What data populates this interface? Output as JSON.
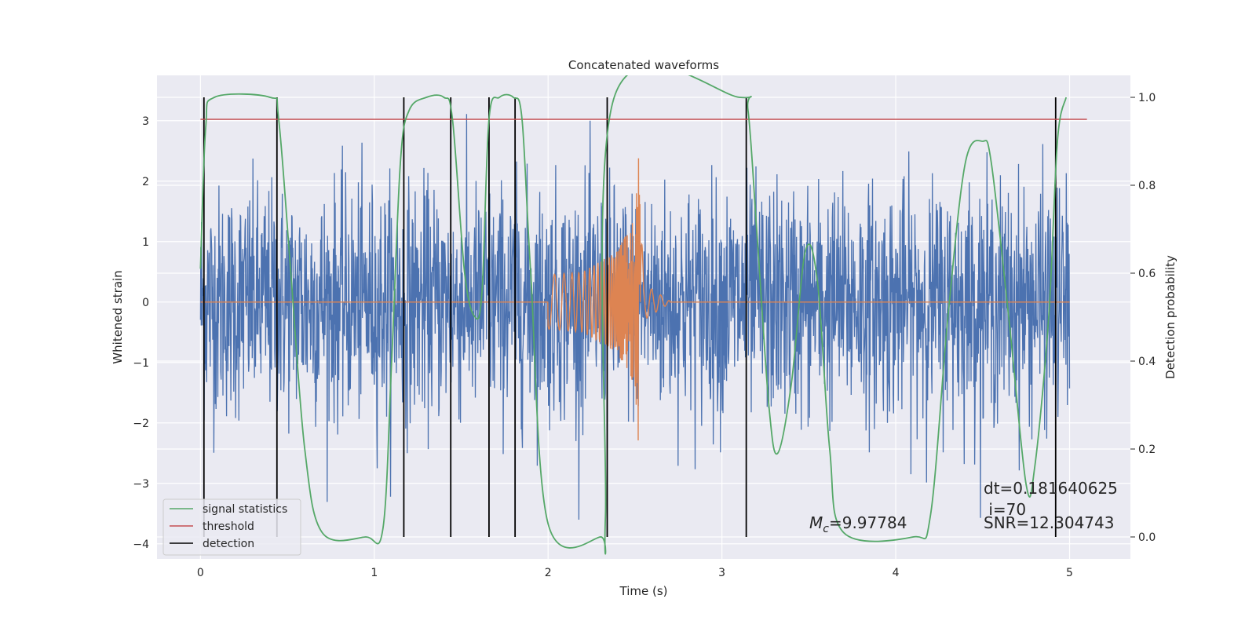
{
  "chart_data": {
    "type": "line",
    "title": "Concatenated waveforms",
    "xlabel": "Time (s)",
    "ylabel": "Whitened strain",
    "y2label": "Detection probability",
    "xlim": [
      -0.25,
      5.35
    ],
    "ylim": [
      -4.25,
      3.75
    ],
    "y2lim": [
      -0.05,
      1.05
    ],
    "x_ticks": [
      0,
      1,
      2,
      3,
      4,
      5
    ],
    "y_ticks": [
      -4,
      -3,
      -2,
      -1,
      0,
      1,
      2,
      3
    ],
    "y2_ticks": [
      0.0,
      0.2,
      0.4,
      0.6,
      0.8,
      1.0
    ],
    "x_tick_labels": [
      "0",
      "1",
      "2",
      "3",
      "4",
      "5"
    ],
    "y_tick_labels": [
      "−4",
      "−3",
      "−2",
      "−1",
      "0",
      "1",
      "2",
      "3"
    ],
    "y2_tick_labels": [
      "0.0",
      "0.2",
      "0.4",
      "0.6",
      "0.8",
      "1.0"
    ],
    "grid": true,
    "legend_position": "lower-left",
    "colors": {
      "background": "#eaeaf2",
      "grid": "#ffffff",
      "strain": "#4c72b0",
      "template": "#dd8452",
      "signal_statistics": "#55a868",
      "threshold": "#c44e52",
      "detection": "#000000"
    },
    "series": [
      {
        "name": "",
        "description_color": "strain",
        "x_range": [
          0,
          5
        ],
        "amplitude_envelope": [
          -3.6,
          3.5
        ],
        "typical_band": [
          -1.2,
          1.2
        ]
      },
      {
        "name": "",
        "description_color": "template",
        "x": [
          0,
          1.99,
          2.0,
          2.2,
          2.4,
          2.5,
          2.52,
          2.55,
          2.7,
          5.0
        ],
        "envelope": [
          0,
          0,
          0.45,
          0.5,
          0.85,
          1.4,
          2.45,
          0.3,
          0.02,
          0
        ]
      },
      {
        "name": "signal statistics",
        "axis": "right",
        "x": [
          0.0,
          0.03,
          0.08,
          0.4,
          0.45,
          0.52,
          0.6,
          0.7,
          0.95,
          1.05,
          1.1,
          1.15,
          1.2,
          1.3,
          1.4,
          1.45,
          1.52,
          1.58,
          1.62,
          1.66,
          1.72,
          1.8,
          1.85,
          1.9,
          2.0,
          2.3,
          2.33,
          2.38,
          3.1,
          3.15,
          3.2,
          3.27,
          3.32,
          3.4,
          3.48,
          3.55,
          3.62,
          3.7,
          4.1,
          4.2,
          4.3,
          4.4,
          4.5,
          4.55,
          4.65,
          4.75,
          4.8,
          4.88,
          4.93,
          4.98
        ],
        "values": [
          0.61,
          0.93,
          1.0,
          1.0,
          0.95,
          0.6,
          0.2,
          0.01,
          0.0,
          0.02,
          0.4,
          0.85,
          0.97,
          1.0,
          1.0,
          0.95,
          0.6,
          0.5,
          0.56,
          0.95,
          1.0,
          1.0,
          0.95,
          0.6,
          0.03,
          0.0,
          0.05,
          1.0,
          1.0,
          0.97,
          0.7,
          0.3,
          0.19,
          0.35,
          0.65,
          0.58,
          0.2,
          0.01,
          0.0,
          0.05,
          0.5,
          0.85,
          0.9,
          0.85,
          0.5,
          0.12,
          0.16,
          0.5,
          0.9,
          1.0
        ]
      },
      {
        "name": "threshold",
        "axis": "right",
        "x": [
          0.0,
          5.1
        ],
        "values": [
          0.95,
          0.95
        ]
      }
    ],
    "detections": [
      0.02,
      0.44,
      1.17,
      1.44,
      1.66,
      1.81,
      2.34,
      3.14,
      4.92
    ],
    "legend": [
      {
        "label": "signal statistics",
        "series": "signal_statistics"
      },
      {
        "label": "threshold",
        "series": "threshold"
      },
      {
        "label": "detection",
        "series": "detection"
      }
    ],
    "annotations": {
      "mc_symbol": "M",
      "mc_subscript": "c",
      "mc_value": "=9.97784",
      "dt": "dt=0.181640625",
      "i": " i=70",
      "snr": "SNR=12.304743"
    }
  }
}
